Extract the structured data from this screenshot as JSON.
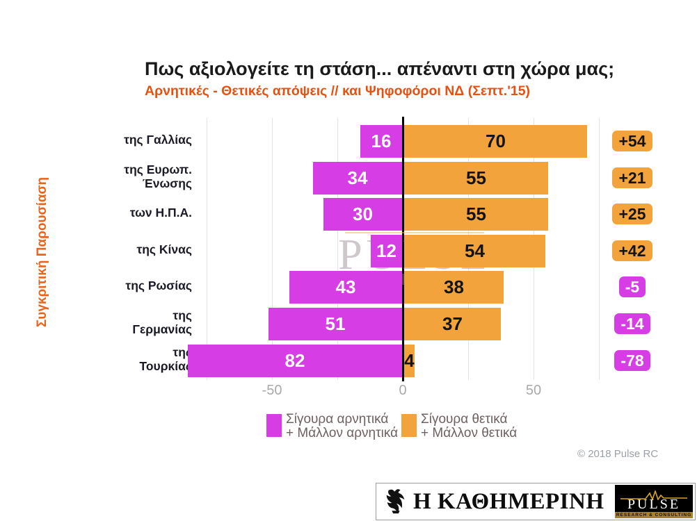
{
  "header": {
    "title": "Πως αξιολογείτε τη στάση... απέναντι στη χώρα μας;",
    "subtitle": "Αρνητικές - Θετικές απόψεις // και Ψηφοφόροι ΝΔ (Σεπτ.'15)"
  },
  "side_label": "Συγκριτική  Παρουσίαση",
  "chart_data": {
    "type": "bar",
    "variant": "horizontal-diverging",
    "categories": [
      "της Γαλλίας",
      "της Ευρωπ.\nΈνωσης",
      "των Η.Π.Α.",
      "της Κίνας",
      "της Ρωσίας",
      "της\nΓερμανίας",
      "της\nΤουρκίας"
    ],
    "series": [
      {
        "name": "Σίγουρα αρνητικά\n+ Μάλλον αρνητικά",
        "side": "negative",
        "color": "#d63de4",
        "text_color": "#ffffff",
        "values": [
          16,
          34,
          30,
          12,
          43,
          51,
          82
        ]
      },
      {
        "name": "Σίγουρα θετικά\n+ Μάλλον θετικά",
        "side": "positive",
        "color": "#f2a33c",
        "text_color": "#141414",
        "values": [
          70,
          55,
          55,
          54,
          38,
          37,
          4
        ]
      }
    ],
    "net_labels": [
      "+54",
      "+21",
      "+25",
      "+42",
      "-5",
      "-14",
      "-78"
    ],
    "x_ticks": [
      "-50",
      "0",
      "50"
    ],
    "x_tick_values": [
      -50,
      0,
      50
    ],
    "xlim": [
      -77,
      77
    ],
    "grid_interval": 25,
    "grid": "vertical-light-gray",
    "legend_position": "bottom",
    "net_badge_colors": {
      "positive_bg": "#f2a33c",
      "positive_text": "#141414",
      "negative_bg": "#d63de4",
      "negative_text": "#ffffff"
    }
  },
  "watermark": {
    "name": "PULSE",
    "sub": "RESEARCH & CONSULTING"
  },
  "copyright": "© 2018 Pulse RC",
  "footer": {
    "kathimerini_logo": "Η ΚΑΘΗΜΕΡΙΝΗ",
    "pulse_logo": "PULSE",
    "pulse_logo_sub": "RESEARCH & CONSULTING"
  },
  "colors": {
    "negative": "#d63de4",
    "positive": "#f2a33c",
    "title": "#1a1a1a",
    "subtitle_accent": "#e8500f",
    "side_accent": "#e8641c"
  }
}
